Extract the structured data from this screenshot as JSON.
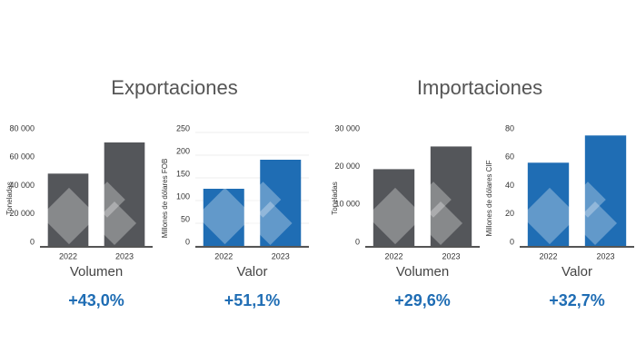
{
  "sections": [
    "Exportaciones",
    "Importaciones"
  ],
  "chart_data": [
    {
      "type": "bar",
      "title": "Volumen",
      "ylabel": "Toneladas",
      "categories": [
        "2022",
        "2023"
      ],
      "values": [
        51000,
        73000
      ],
      "color": "#54565a",
      "ylim": [
        0,
        80000
      ],
      "yticks": [
        0,
        {
          "value": 20000,
          "label": "20 000"
        },
        {
          "value": 40000,
          "label": "40 000"
        },
        {
          "value": 60000,
          "label": "60 000"
        },
        {
          "value": 80000,
          "label": "80 000"
        }
      ],
      "annotation": "+43,0%"
    },
    {
      "type": "bar",
      "title": "Valor",
      "ylabel": "Millones de dólares FOB",
      "categories": [
        "2022",
        "2023"
      ],
      "values": [
        126,
        190
      ],
      "color": "#1f6db4",
      "ylim": [
        0,
        250
      ],
      "yticks": [
        0,
        50,
        100,
        150,
        200,
        250
      ],
      "grid": true,
      "annotation": "+51,1%"
    },
    {
      "type": "bar",
      "title": "Volumen",
      "ylabel": "Toneladas",
      "categories": [
        "2022",
        "2023"
      ],
      "values": [
        20300,
        26300
      ],
      "color": "#54565a",
      "ylim": [
        0,
        30000
      ],
      "yticks": [
        0,
        {
          "value": 10000,
          "label": "10 000"
        },
        {
          "value": 20000,
          "label": "20 000"
        },
        {
          "value": 30000,
          "label": "30 000"
        }
      ],
      "annotation": "+29,6%"
    },
    {
      "type": "bar",
      "title": "Valor",
      "ylabel": "Millones de dólares CIF",
      "categories": [
        "2022",
        "2023"
      ],
      "values": [
        58.7,
        77.9
      ],
      "color": "#1f6db4",
      "ylim": [
        0,
        80
      ],
      "yticks": [
        0,
        20,
        40,
        60,
        80
      ],
      "annotation": "+32,7%"
    }
  ]
}
